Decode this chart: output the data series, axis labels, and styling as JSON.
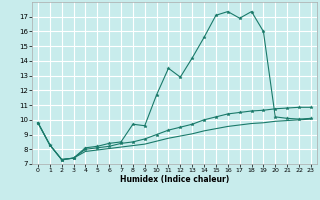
{
  "xlabel": "Humidex (Indice chaleur)",
  "background_color": "#c8ecec",
  "grid_color": "#ffffff",
  "line_color": "#1a7a6a",
  "xlim": [
    -0.5,
    23.5
  ],
  "ylim": [
    7,
    18
  ],
  "xticks": [
    0,
    1,
    2,
    3,
    4,
    5,
    6,
    7,
    8,
    9,
    10,
    11,
    12,
    13,
    14,
    15,
    16,
    17,
    18,
    19,
    20,
    21,
    22,
    23
  ],
  "yticks": [
    7,
    8,
    9,
    10,
    11,
    12,
    13,
    14,
    15,
    16,
    17
  ],
  "line1_x": [
    0,
    1,
    2,
    3,
    4,
    5,
    6,
    7,
    8,
    9,
    10,
    11,
    12,
    13,
    14,
    15,
    16,
    17,
    18,
    19,
    20,
    21,
    22,
    23
  ],
  "line1_y": [
    9.8,
    8.3,
    7.3,
    7.4,
    8.1,
    8.2,
    8.4,
    8.5,
    9.7,
    9.6,
    11.7,
    13.5,
    12.9,
    14.2,
    15.6,
    17.1,
    17.35,
    16.9,
    17.35,
    16.0,
    10.2,
    10.1,
    10.05,
    10.1
  ],
  "line2_x": [
    0,
    1,
    2,
    3,
    4,
    5,
    6,
    7,
    8,
    9,
    10,
    11,
    12,
    13,
    14,
    15,
    16,
    17,
    18,
    19,
    20,
    21,
    22,
    23
  ],
  "line2_y": [
    9.8,
    8.3,
    7.3,
    7.4,
    8.0,
    8.1,
    8.2,
    8.4,
    8.5,
    8.7,
    9.0,
    9.3,
    9.5,
    9.7,
    10.0,
    10.2,
    10.4,
    10.5,
    10.6,
    10.65,
    10.75,
    10.8,
    10.85,
    10.85
  ],
  "line3_x": [
    0,
    1,
    2,
    3,
    4,
    5,
    6,
    7,
    8,
    9,
    10,
    11,
    12,
    13,
    14,
    15,
    16,
    17,
    18,
    19,
    20,
    21,
    22,
    23
  ],
  "line3_y": [
    9.8,
    8.3,
    7.3,
    7.4,
    7.85,
    7.95,
    8.05,
    8.15,
    8.25,
    8.35,
    8.55,
    8.75,
    8.9,
    9.05,
    9.25,
    9.4,
    9.55,
    9.65,
    9.75,
    9.8,
    9.9,
    9.95,
    10.0,
    10.05
  ]
}
